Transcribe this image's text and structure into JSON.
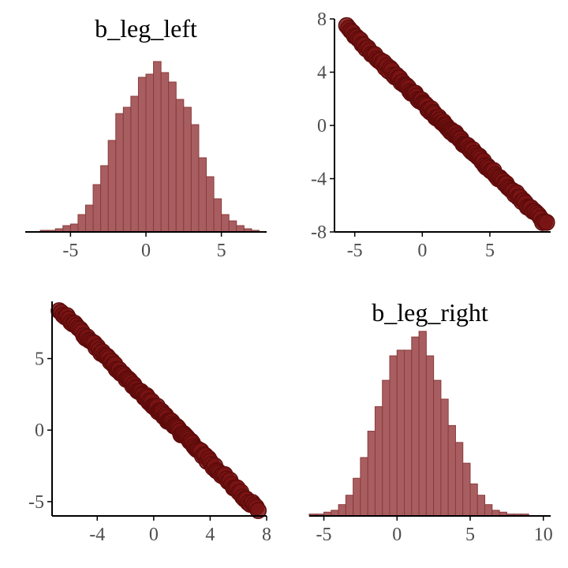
{
  "colors": {
    "fill": "#8b1a1a",
    "bar_fill": "#a85e60",
    "bar_stroke": "#8b3a3a",
    "point_fill": "#7a1414",
    "point_stroke": "#5e0b0b",
    "axis": "#000000",
    "tick_text": "#4d4d4d"
  },
  "chart_data": [
    {
      "panel": "top-left",
      "type": "bar",
      "title": "b_leg_left",
      "xlim": [
        -8,
        8
      ],
      "xticks": [
        -5,
        0,
        5
      ],
      "xtick_labels": [
        "-5",
        "0",
        "5"
      ],
      "bin_width": 0.5,
      "categories": [
        -7.75,
        -7.25,
        -6.75,
        -6.25,
        -5.75,
        -5.25,
        -4.75,
        -4.25,
        -3.75,
        -3.25,
        -2.75,
        -2.25,
        -1.75,
        -1.25,
        -0.75,
        -0.25,
        0.25,
        0.75,
        1.25,
        1.75,
        2.25,
        2.75,
        3.25,
        3.75,
        4.25,
        4.75,
        5.25,
        5.75,
        6.25,
        6.75,
        7.25,
        7.75
      ],
      "values": [
        0,
        0,
        1,
        1,
        2,
        4,
        5,
        11,
        17,
        30,
        42,
        58,
        75,
        79,
        86,
        98,
        100,
        108,
        101,
        95,
        84,
        79,
        68,
        47,
        35,
        21,
        11,
        7,
        4,
        2,
        1,
        0
      ],
      "grid": false
    },
    {
      "panel": "top-right",
      "type": "scatter",
      "title": "",
      "xlim": [
        -6.5,
        9.5
      ],
      "ylim": [
        -8,
        8
      ],
      "xticks": [
        -5,
        0,
        5
      ],
      "xtick_labels": [
        "-5",
        "0",
        "5"
      ],
      "yticks": [
        -8,
        -4,
        0,
        4,
        8
      ],
      "ytick_labels": [
        "-8",
        "-4",
        "0",
        "4",
        "8"
      ],
      "trend": {
        "slope": -1.0,
        "intercept": 1.75,
        "x_min": -5.6,
        "x_max": 9.2
      },
      "grid": false
    },
    {
      "panel": "bottom-left",
      "type": "scatter",
      "title": "",
      "xlim": [
        -7.2,
        8
      ],
      "ylim": [
        -6,
        9
      ],
      "xticks": [
        -4,
        0,
        4,
        8
      ],
      "xtick_labels": [
        "-4",
        "0",
        "4",
        "8"
      ],
      "yticks": [
        -5,
        0,
        5
      ],
      "ytick_labels": [
        "-5",
        "0",
        "5"
      ],
      "trend": {
        "slope": -1.0,
        "intercept": 1.75,
        "x_min": -6.7,
        "x_max": 7.4
      },
      "grid": false
    },
    {
      "panel": "bottom-right",
      "type": "bar",
      "title": "b_leg_right",
      "xlim": [
        -6,
        10.5
      ],
      "xticks": [
        -5,
        0,
        5,
        10
      ],
      "xtick_labels": [
        "-5",
        "0",
        "5",
        "10"
      ],
      "bin_width": 0.5,
      "categories": [
        -5.75,
        -5.25,
        -4.75,
        -4.25,
        -3.75,
        -3.25,
        -2.75,
        -2.25,
        -1.75,
        -1.25,
        -0.75,
        -0.25,
        0.25,
        0.75,
        1.25,
        1.75,
        2.25,
        2.75,
        3.25,
        3.75,
        4.25,
        4.75,
        5.25,
        5.75,
        6.25,
        6.75,
        7.25,
        7.75,
        8.25,
        8.75,
        9.25,
        9.75
      ],
      "values": [
        1,
        1,
        2,
        3,
        6,
        11,
        20,
        31,
        45,
        58,
        72,
        85,
        88,
        88,
        95,
        98,
        85,
        72,
        62,
        48,
        39,
        28,
        17,
        11,
        6,
        3,
        2,
        1,
        1,
        1,
        0,
        0
      ],
      "grid": false
    }
  ]
}
